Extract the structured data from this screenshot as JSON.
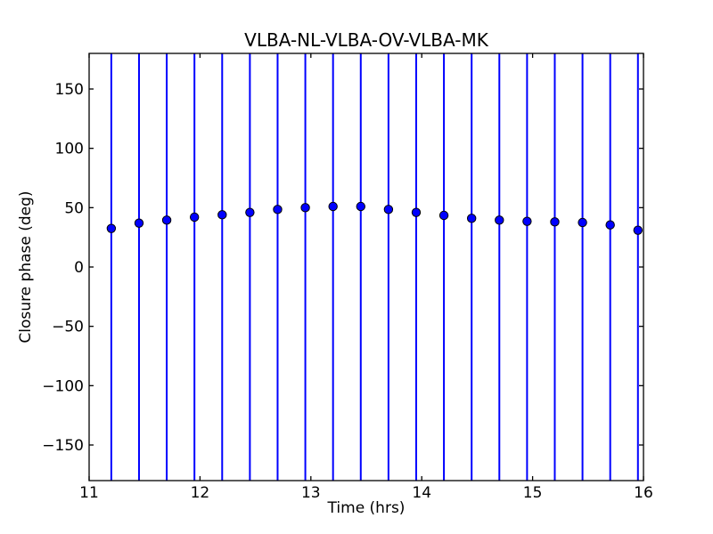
{
  "chart_data": {
    "type": "scatter",
    "title": "VLBA-NL-VLBA-OV-VLBA-MK",
    "xlabel": "Time (hrs)",
    "ylabel": "Closure phase (deg)",
    "xlim": [
      11,
      16
    ],
    "ylim": [
      -180,
      180
    ],
    "xtick_values": [
      11,
      12,
      13,
      14,
      15,
      16
    ],
    "xtick_labels": [
      "11",
      "12",
      "13",
      "14",
      "15",
      "16"
    ],
    "ytick_values": [
      -150,
      -100,
      -50,
      0,
      50,
      100,
      150
    ],
    "ytick_labels": [
      "−150",
      "−100",
      "−50",
      "0",
      "50",
      "100",
      "150"
    ],
    "x": [
      11.2,
      11.45,
      11.7,
      11.95,
      12.2,
      12.45,
      12.7,
      12.95,
      13.2,
      13.45,
      13.7,
      13.95,
      14.2,
      14.45,
      14.7,
      14.95,
      15.2,
      15.45,
      15.7,
      15.95
    ],
    "y": [
      32.5,
      37,
      39.5,
      42,
      44,
      46,
      48.5,
      50,
      51,
      51,
      48.5,
      46,
      43.5,
      41,
      39.5,
      38.5,
      38,
      37.5,
      35.5,
      31
    ],
    "error_bars": {
      "orientation": "vertical",
      "extent": "spans full y-axis range, clipped at axes frame"
    },
    "legend": null,
    "grid": false,
    "colors": {
      "marker_fill": "#0000ff",
      "marker_edge": "#000000",
      "errorbar": "#0000ff",
      "axes_frame": "#000000",
      "tick": "#000000",
      "background": "#ffffff"
    }
  }
}
